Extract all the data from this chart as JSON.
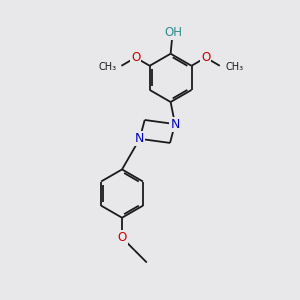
{
  "bg_color": "#e8e8eb",
  "bond_color": "#1a1a1a",
  "bond_width": 1.3,
  "atom_colors": {
    "O": "#cc0000",
    "N": "#0000bb",
    "H": "#2e8b8b",
    "C": "#1a1a1a"
  },
  "fig_size": [
    3.0,
    3.0
  ],
  "dpi": 100,
  "xlim": [
    0,
    10
  ],
  "ylim": [
    0,
    10
  ]
}
